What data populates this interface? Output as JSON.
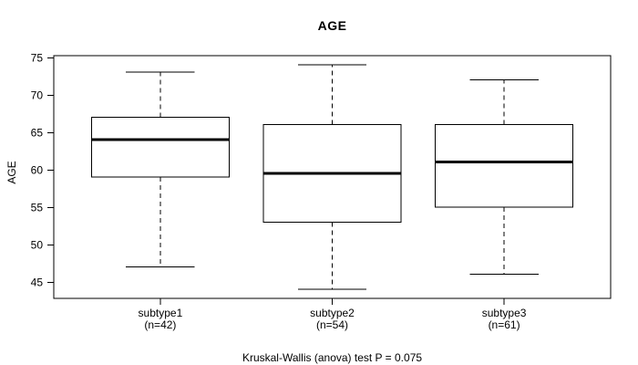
{
  "figure": {
    "background": "#ffffff",
    "line_color": "#000000",
    "box_fill": "#ffffff"
  },
  "chart_data": {
    "type": "boxplot",
    "title": "AGE",
    "ylabel": "AGE",
    "xlabel": "",
    "ylim": [
      42.8,
      75.2
    ],
    "yticks": [
      45,
      50,
      55,
      60,
      65,
      70,
      75
    ],
    "grid": false,
    "legend": false,
    "caption": "Kruskal-Wallis (anova) test P = 0.075",
    "p_value": 0.075,
    "groups": [
      {
        "label": "subtype1",
        "n_label": "(n=42)",
        "n": 42,
        "whisker_low": 47,
        "q1": 59,
        "median": 64,
        "q3": 67,
        "whisker_high": 73
      },
      {
        "label": "subtype2",
        "n_label": "(n=54)",
        "n": 54,
        "whisker_low": 44,
        "q1": 53,
        "median": 59.5,
        "q3": 66,
        "whisker_high": 74
      },
      {
        "label": "subtype3",
        "n_label": "(n=61)",
        "n": 61,
        "whisker_low": 46,
        "q1": 55,
        "median": 61,
        "q3": 66,
        "whisker_high": 72
      }
    ]
  }
}
